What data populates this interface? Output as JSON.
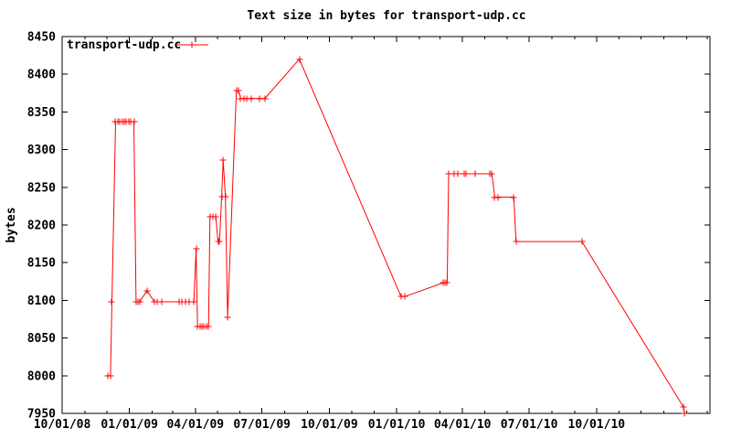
{
  "title": "Text size in bytes for transport-udp.cc",
  "legend": {
    "label": "transport-udp.cc"
  },
  "chart_data": {
    "type": "line",
    "title": "Text size in bytes for transport-udp.cc",
    "xlabel": "",
    "ylabel": "bytes",
    "series_name": "transport-udp.cc",
    "line_color": "#ff0000",
    "marker": "plus",
    "grid": false,
    "legend_position": "top-left-inside",
    "ylim": [
      7950,
      8450
    ],
    "yticks": [
      7950,
      8000,
      8050,
      8100,
      8150,
      8200,
      8250,
      8300,
      8350,
      8400,
      8450
    ],
    "x_axis_days_range": [
      0,
      885
    ],
    "x_major_ticks": [
      {
        "label": "10/01/08",
        "day": 0
      },
      {
        "label": "01/01/09",
        "day": 92
      },
      {
        "label": "04/01/09",
        "day": 182
      },
      {
        "label": "07/01/09",
        "day": 273
      },
      {
        "label": "10/01/09",
        "day": 365
      },
      {
        "label": "01/01/10",
        "day": 457
      },
      {
        "label": "04/01/10",
        "day": 547
      },
      {
        "label": "07/01/10",
        "day": 638
      },
      {
        "label": "10/01/10",
        "day": 730
      }
    ],
    "x_minor_tick_days": [
      31,
      61,
      123,
      151,
      212,
      243,
      304,
      335,
      396,
      426,
      488,
      516,
      577,
      608,
      669,
      700,
      761,
      791,
      822,
      853,
      881
    ],
    "points": [
      {
        "d": 62,
        "v": 8000
      },
      {
        "d": 66,
        "v": 8000
      },
      {
        "d": 68,
        "v": 8098
      },
      {
        "d": 73,
        "v": 8337
      },
      {
        "d": 76,
        "v": 8337
      },
      {
        "d": 79,
        "v": 8337
      },
      {
        "d": 82,
        "v": 8337
      },
      {
        "d": 85,
        "v": 8337
      },
      {
        "d": 88,
        "v": 8337
      },
      {
        "d": 91,
        "v": 8337
      },
      {
        "d": 94,
        "v": 8337
      },
      {
        "d": 98,
        "v": 8337
      },
      {
        "d": 101,
        "v": 8098
      },
      {
        "d": 104,
        "v": 8098
      },
      {
        "d": 106,
        "v": 8098
      },
      {
        "d": 116,
        "v": 8113
      },
      {
        "d": 126,
        "v": 8098
      },
      {
        "d": 130,
        "v": 8098
      },
      {
        "d": 136,
        "v": 8098
      },
      {
        "d": 160,
        "v": 8098
      },
      {
        "d": 164,
        "v": 8098
      },
      {
        "d": 169,
        "v": 8098
      },
      {
        "d": 173,
        "v": 8098
      },
      {
        "d": 180,
        "v": 8098
      },
      {
        "d": 183,
        "v": 8168
      },
      {
        "d": 185,
        "v": 8065
      },
      {
        "d": 188,
        "v": 8065
      },
      {
        "d": 191,
        "v": 8065
      },
      {
        "d": 194,
        "v": 8065
      },
      {
        "d": 197,
        "v": 8065
      },
      {
        "d": 200,
        "v": 8065
      },
      {
        "d": 202,
        "v": 8211
      },
      {
        "d": 206,
        "v": 8211
      },
      {
        "d": 210,
        "v": 8211
      },
      {
        "d": 213,
        "v": 8178
      },
      {
        "d": 215,
        "v": 8178
      },
      {
        "d": 218,
        "v": 8238
      },
      {
        "d": 220,
        "v": 8286
      },
      {
        "d": 223,
        "v": 8238
      },
      {
        "d": 226,
        "v": 8078
      },
      {
        "d": 238,
        "v": 8378
      },
      {
        "d": 241,
        "v": 8378
      },
      {
        "d": 244,
        "v": 8368
      },
      {
        "d": 248,
        "v": 8368
      },
      {
        "d": 252,
        "v": 8368
      },
      {
        "d": 259,
        "v": 8368
      },
      {
        "d": 269,
        "v": 8368
      },
      {
        "d": 277,
        "v": 8368
      },
      {
        "d": 324,
        "v": 8420
      },
      {
        "d": 463,
        "v": 8105
      },
      {
        "d": 468,
        "v": 8105
      },
      {
        "d": 520,
        "v": 8123
      },
      {
        "d": 523,
        "v": 8123
      },
      {
        "d": 526,
        "v": 8123
      },
      {
        "d": 528,
        "v": 8268
      },
      {
        "d": 536,
        "v": 8268
      },
      {
        "d": 541,
        "v": 8268
      },
      {
        "d": 549,
        "v": 8268
      },
      {
        "d": 552,
        "v": 8268
      },
      {
        "d": 564,
        "v": 8268
      },
      {
        "d": 584,
        "v": 8268
      },
      {
        "d": 587,
        "v": 8268
      },
      {
        "d": 591,
        "v": 8237
      },
      {
        "d": 595,
        "v": 8237
      },
      {
        "d": 617,
        "v": 8237
      },
      {
        "d": 620,
        "v": 8178
      },
      {
        "d": 710,
        "v": 8178
      },
      {
        "d": 849,
        "v": 7958
      },
      {
        "d": 850,
        "v": 7950
      }
    ]
  }
}
